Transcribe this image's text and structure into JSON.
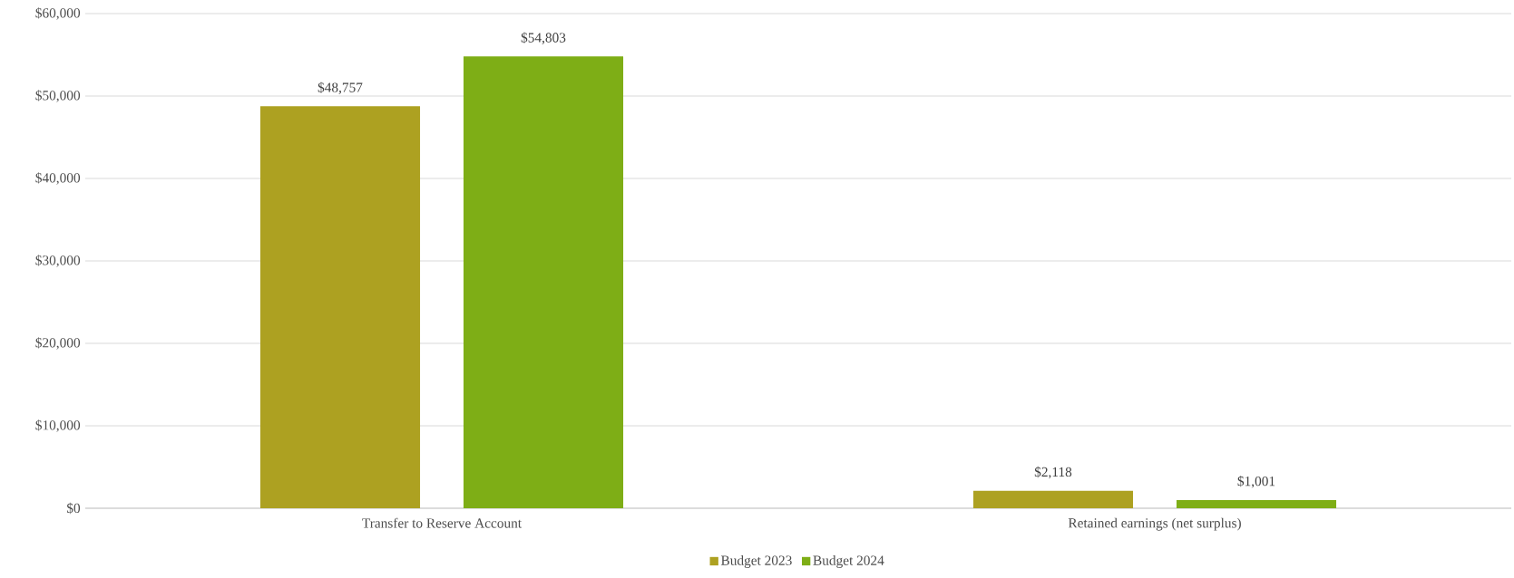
{
  "chart_data": {
    "type": "bar",
    "categories": [
      "Transfer to Reserve Account",
      "Retained earnings (net surplus)"
    ],
    "series": [
      {
        "name": "Budget 2023",
        "color": "#ada121",
        "values": [
          48757,
          2118
        ],
        "value_labels": [
          "$48,757",
          "$2,118"
        ]
      },
      {
        "name": "Budget 2024",
        "color": "#7eae16",
        "values": [
          54803,
          1001
        ],
        "value_labels": [
          "$54,803",
          "$1,001"
        ]
      }
    ],
    "ylim": [
      0,
      60000
    ],
    "yticks": [
      {
        "value": 0,
        "label": "$0"
      },
      {
        "value": 10000,
        "label": "$10,000"
      },
      {
        "value": 20000,
        "label": "$20,000"
      },
      {
        "value": 30000,
        "label": "$30,000"
      },
      {
        "value": 40000,
        "label": "$40,000"
      },
      {
        "value": 50000,
        "label": "$50,000"
      },
      {
        "value": 60000,
        "label": "$60,000"
      }
    ],
    "grid": "y",
    "legend": "bottom"
  }
}
